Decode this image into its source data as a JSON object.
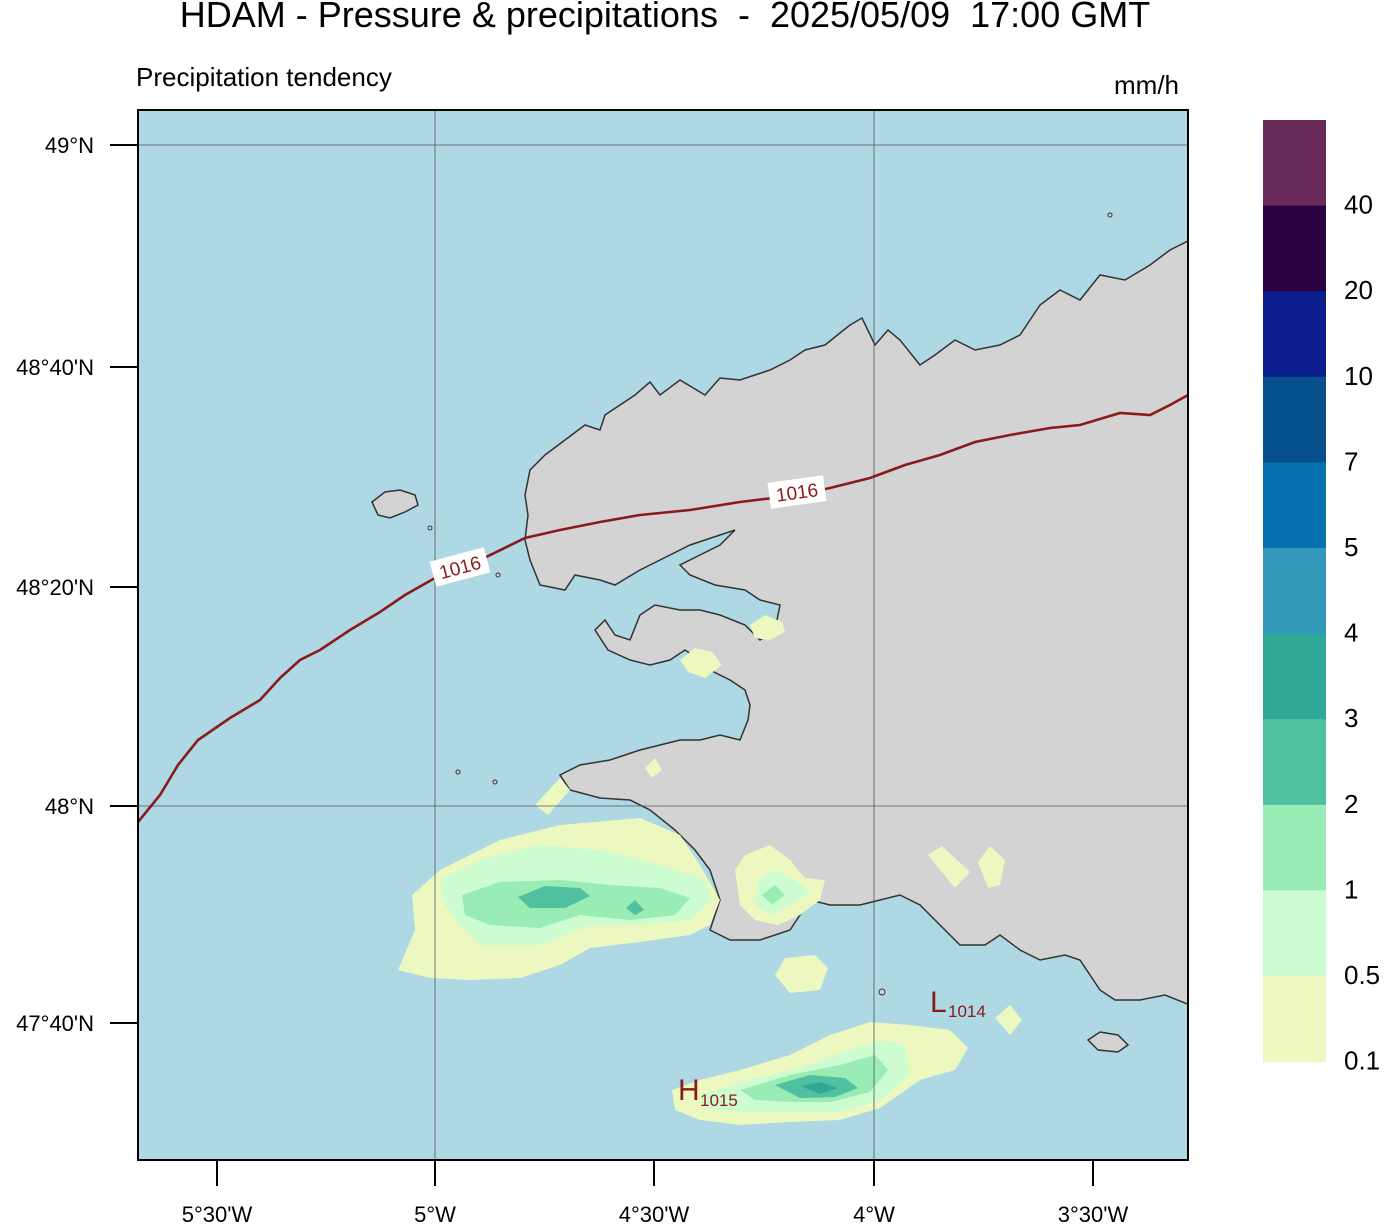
{
  "header": {
    "title": "HDAM - Pressure & precipitations  -  2025/05/09  17:00 GMT",
    "subtitle": "Precipitation tendency",
    "units": "mm/h"
  },
  "axes": {
    "lat_labels": [
      "49°N",
      "48°40'N",
      "48°20'N",
      "48°N",
      "47°40'N"
    ],
    "lon_labels": [
      "5°30'W",
      "5°W",
      "4°30'W",
      "4°W",
      "3°30'W"
    ]
  },
  "isobars": [
    {
      "value": "1016",
      "label_count": 2
    }
  ],
  "pressure_centers": [
    {
      "type": "H",
      "value": "1015"
    },
    {
      "type": "L",
      "value": "1014"
    }
  ],
  "legend": {
    "labels": [
      "40",
      "20",
      "10",
      "7",
      "5",
      "4",
      "3",
      "2",
      "1",
      "0.5",
      "0.1"
    ],
    "colors": [
      "#6a2a5a",
      "#2a0040",
      "#0a1e8c",
      "#06508c",
      "#0670b0",
      "#3498b8",
      "#30a898",
      "#50c0a0",
      "#98ecb4",
      "#ccfcd0",
      "#ecf8c0"
    ]
  },
  "colors": {
    "sea": "#add8e4",
    "land": "#d3d3d3",
    "coast": "#333333",
    "isobar": "#8b1a1a"
  }
}
